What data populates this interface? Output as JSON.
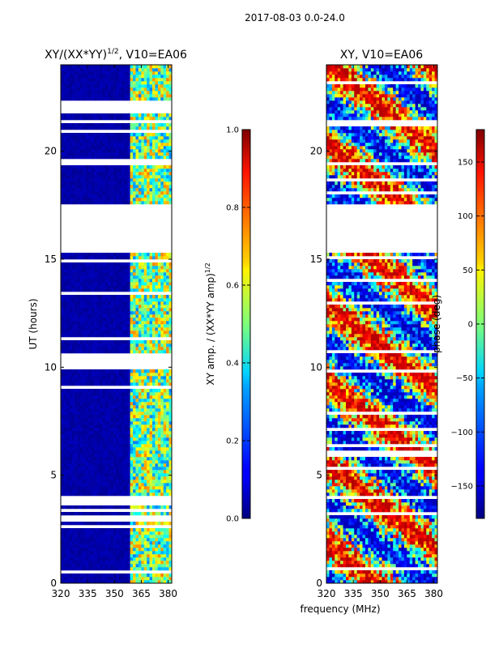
{
  "suptitle": "2017-08-03 0.0-24.0",
  "chart_data": [
    {
      "type": "heatmap",
      "title": "XY/(XX*YY)^1/2, V10=EA06",
      "title_main": "XY/(XX*YY)",
      "title_exp": "1/2",
      "title_rest": ", V10=EA06",
      "xlabel": "frequency (MHz)",
      "ylabel": "UT (hours)",
      "xlim": [
        320,
        382
      ],
      "ylim": [
        0,
        24
      ],
      "xticks": [
        320,
        335,
        350,
        365,
        380
      ],
      "yticks": [
        0,
        5,
        10,
        15,
        20
      ],
      "colorbar": {
        "label": "XY amp. / (XX*YY amp)^1/2",
        "label_main": "XY amp. / (XX*YY amp)",
        "label_exp": "1/2",
        "range": [
          0.0,
          1.0
        ],
        "ticks": [
          "0.0",
          "0.2",
          "0.4",
          "0.6",
          "0.8",
          "1.0"
        ],
        "colormap": "jet"
      },
      "blank_hours": [
        [
          15.3,
          17.6
        ],
        [
          21.8,
          22.4
        ],
        [
          9.9,
          10.7
        ]
      ],
      "active_freq_MHz": [
        358,
        382
      ],
      "typical_value_low_freq": 0.02,
      "typical_value_active": 0.45
    },
    {
      "type": "heatmap",
      "title": "XY, V10=EA06",
      "xlabel": "frequency (MHz)",
      "xlim": [
        320,
        382
      ],
      "ylim": [
        0,
        24
      ],
      "xticks": [
        320,
        335,
        350,
        365,
        380
      ],
      "yticks": [
        0,
        5,
        10,
        15,
        20
      ],
      "colorbar": {
        "label": "phase (deg)",
        "range": [
          -180,
          180
        ],
        "ticks": [
          "−150",
          "−100",
          "−50",
          "0",
          "50",
          "100",
          "150"
        ],
        "colormap": "jet"
      },
      "blank_hours": [
        [
          15.3,
          17.6
        ]
      ]
    }
  ]
}
